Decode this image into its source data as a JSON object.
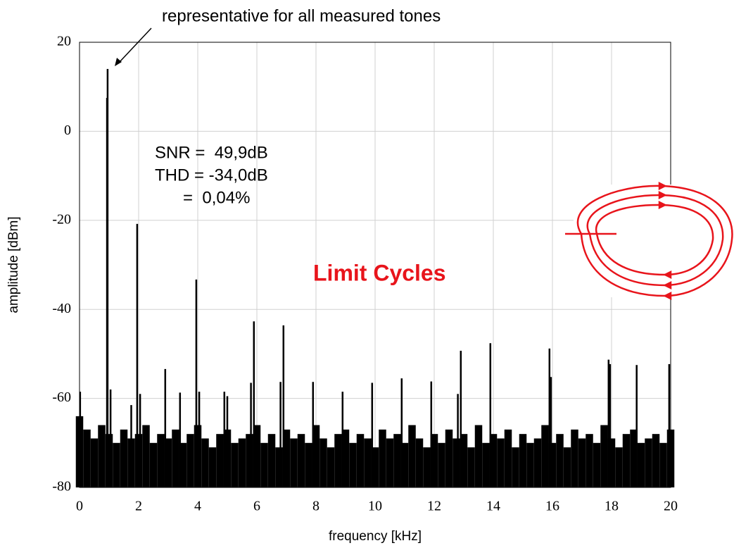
{
  "chart_data": {
    "type": "spectrum",
    "annotations": [
      "representative for all measured tones",
      "SNR =  49,9dB",
      "THD = -34,0dB",
      "      =  0,04%",
      "Limit Cycles"
    ],
    "x_label": "frequency [kHz]",
    "y_label": "amplitude [dBm]",
    "xlim": [
      0,
      20
    ],
    "ylim": [
      -80,
      20
    ],
    "xticks": [
      0,
      2,
      4,
      6,
      8,
      10,
      12,
      14,
      16,
      18,
      20
    ],
    "yticks": [
      -80,
      -60,
      -40,
      -20,
      0,
      20
    ],
    "grid": true,
    "series": [
      {
        "color": "#000000",
        "x": [
          0,
          0.25,
          0.5,
          0.75,
          1,
          1.25,
          1.5,
          1.75,
          2,
          2.25,
          2.5,
          2.75,
          3,
          3.25,
          3.5,
          3.75,
          4,
          4.25,
          4.5,
          4.75,
          5,
          5.25,
          5.5,
          5.75,
          6,
          6.25,
          6.5,
          6.75,
          7,
          7.25,
          7.5,
          7.75,
          8,
          8.25,
          8.5,
          8.75,
          9,
          9.25,
          9.5,
          9.75,
          10,
          10.25,
          10.5,
          10.75,
          11,
          11.25,
          11.5,
          11.75,
          12,
          12.25,
          12.5,
          12.75,
          13,
          13.25,
          13.5,
          13.75,
          14,
          14.25,
          14.5,
          14.75,
          15,
          15.25,
          15.5,
          15.75,
          16,
          16.25,
          16.5,
          16.75,
          17,
          17.25,
          17.5,
          17.75,
          18,
          18.25,
          18.5,
          18.75,
          19,
          19.25,
          19.5,
          19.75,
          20
        ],
        "values": [
          -64,
          -67,
          -69,
          -66,
          -68,
          -70,
          -67,
          -69,
          -68,
          -66,
          -70,
          -68,
          -69,
          -67,
          -70,
          -68,
          -66,
          -69,
          -71,
          -68,
          -67,
          -70,
          -69,
          -68,
          -66,
          -70,
          -68,
          -71,
          -67,
          -69,
          -68,
          -70,
          -66,
          -69,
          -71,
          -68,
          -67,
          -70,
          -68,
          -69,
          -71,
          -67,
          -69,
          -68,
          -70,
          -66,
          -69,
          -71,
          -68,
          -70,
          -67,
          -69,
          -68,
          -71,
          -66,
          -70,
          -68,
          -69,
          -67,
          -71,
          -68,
          -70,
          -69,
          -66,
          -70,
          -68,
          -71,
          -67,
          -69,
          -68,
          -70,
          -66,
          -69,
          -71,
          -68,
          -67,
          -70,
          -69,
          -68,
          -70,
          -67
        ]
      },
      {
        "color": "#000000",
        "x": [
          0.02,
          0.93,
          0.95,
          1.05,
          1.75,
          1.95,
          2.05,
          2.9,
          3.4,
          3.95,
          4.05,
          4.9,
          5.0,
          5.8,
          5.9,
          6.8,
          6.9,
          7.9,
          8.9,
          9.9,
          10.9,
          11.9,
          12.8,
          12.9,
          13.9,
          15.9,
          15.95,
          17.9,
          17.95,
          18.85,
          19.95
        ],
        "values": [
          -58.5,
          7.5,
          14,
          -58,
          -61.5,
          -20.8,
          -59,
          -53.4,
          -58.7,
          -33.3,
          -58.5,
          -58.5,
          -59.5,
          -56.5,
          -42.7,
          -56.3,
          -43.6,
          -56.3,
          -58.5,
          -56.5,
          -55.5,
          -56.2,
          -59,
          -49.3,
          -47.6,
          -48.8,
          -55.2,
          -51.3,
          -52.3,
          -52.5,
          -52.3
        ]
      }
    ]
  }
}
